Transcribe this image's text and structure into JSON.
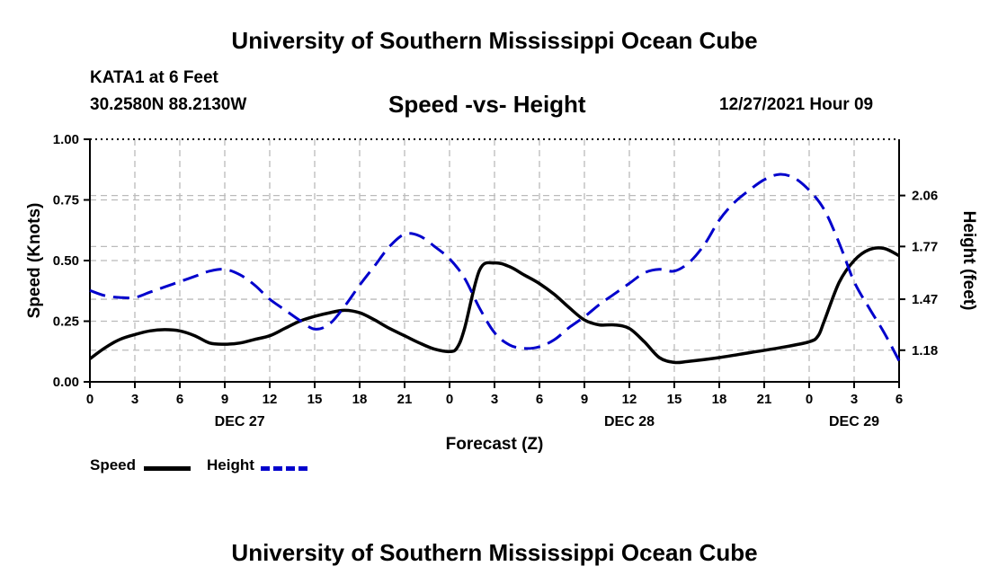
{
  "header": {
    "title": "University of Southern Mississippi Ocean Cube",
    "station": "KATA1 at 6 Feet",
    "coordinates": "30.2580N  88.2130W",
    "subtitle": "Speed -vs- Height",
    "datetime": "12/27/2021 Hour 09"
  },
  "footer": {
    "title": "University of Southern Mississippi Ocean Cube"
  },
  "legend": {
    "speed_label": "Speed",
    "height_label": "Height"
  },
  "colors": {
    "speed": "#000000",
    "height": "#0000cc",
    "grid": "#bbbbbb",
    "axis": "#000000"
  },
  "chart_data": {
    "type": "line",
    "title": "Speed -vs- Height",
    "xlabel": "Forecast (Z)",
    "ylabel_left": "Speed (Knots)",
    "ylabel_right": "Height (feet)",
    "x_range_hours": [
      0,
      54
    ],
    "x_ticks": [
      {
        "hour": 0,
        "label": "0"
      },
      {
        "hour": 3,
        "label": "3"
      },
      {
        "hour": 6,
        "label": "6"
      },
      {
        "hour": 9,
        "label": "9"
      },
      {
        "hour": 12,
        "label": "12"
      },
      {
        "hour": 15,
        "label": "15"
      },
      {
        "hour": 18,
        "label": "18"
      },
      {
        "hour": 21,
        "label": "21"
      },
      {
        "hour": 24,
        "label": "0"
      },
      {
        "hour": 27,
        "label": "3"
      },
      {
        "hour": 30,
        "label": "6"
      },
      {
        "hour": 33,
        "label": "9"
      },
      {
        "hour": 36,
        "label": "12"
      },
      {
        "hour": 39,
        "label": "15"
      },
      {
        "hour": 42,
        "label": "18"
      },
      {
        "hour": 45,
        "label": "21"
      },
      {
        "hour": 48,
        "label": "0"
      },
      {
        "hour": 51,
        "label": "3"
      },
      {
        "hour": 54,
        "label": "6"
      }
    ],
    "date_labels": [
      {
        "hour": 10,
        "label": "DEC 27"
      },
      {
        "hour": 36,
        "label": "DEC 28"
      },
      {
        "hour": 51,
        "label": "DEC 29"
      }
    ],
    "y_left": {
      "min": 0,
      "max": 1.0,
      "ticks": [
        "0.00",
        "0.25",
        "0.50",
        "0.75",
        "1.00"
      ]
    },
    "y_right": {
      "min": 1.0,
      "max": 2.38,
      "ticks": [
        "1.18",
        "1.47",
        "1.77",
        "2.06"
      ]
    },
    "series": [
      {
        "name": "Speed",
        "axis": "left",
        "style": "solid",
        "hours": [
          0,
          1,
          2,
          3,
          4,
          5,
          6,
          7,
          8,
          9,
          10,
          11,
          12,
          13,
          14,
          15,
          16,
          17,
          18,
          19,
          20,
          21,
          22,
          23,
          24,
          24.5,
          25,
          26,
          27,
          28,
          29,
          30,
          31,
          32,
          33,
          34,
          35,
          36,
          37,
          38,
          39,
          40,
          42,
          44,
          46,
          48,
          48.6,
          49,
          50,
          51,
          52,
          53,
          54
        ],
        "values": [
          0.095,
          0.14,
          0.175,
          0.195,
          0.21,
          0.215,
          0.21,
          0.19,
          0.16,
          0.155,
          0.16,
          0.175,
          0.19,
          0.22,
          0.25,
          0.27,
          0.285,
          0.295,
          0.285,
          0.255,
          0.22,
          0.19,
          0.16,
          0.135,
          0.125,
          0.14,
          0.22,
          0.46,
          0.49,
          0.475,
          0.44,
          0.405,
          0.36,
          0.305,
          0.255,
          0.235,
          0.235,
          0.22,
          0.165,
          0.1,
          0.08,
          0.085,
          0.1,
          0.12,
          0.14,
          0.165,
          0.19,
          0.25,
          0.41,
          0.5,
          0.545,
          0.55,
          0.52
        ]
      },
      {
        "name": "Height",
        "axis": "right",
        "style": "dashed",
        "hours": [
          0,
          1,
          2,
          3,
          4,
          5,
          6,
          7,
          8,
          9,
          10,
          11,
          12,
          13,
          14,
          15,
          16,
          17,
          18,
          19,
          20,
          21,
          22,
          23,
          24,
          25,
          26,
          27,
          28,
          29,
          30,
          31,
          32,
          33,
          34,
          35,
          36,
          37,
          38,
          39,
          40,
          41,
          42,
          43,
          44,
          45,
          46,
          47,
          48,
          49,
          50,
          51,
          52,
          53,
          54
        ],
        "values": [
          1.52,
          1.49,
          1.48,
          1.48,
          1.51,
          1.54,
          1.57,
          1.6,
          1.63,
          1.64,
          1.61,
          1.55,
          1.47,
          1.41,
          1.35,
          1.3,
          1.33,
          1.43,
          1.55,
          1.66,
          1.77,
          1.84,
          1.83,
          1.77,
          1.7,
          1.59,
          1.42,
          1.28,
          1.21,
          1.19,
          1.2,
          1.24,
          1.31,
          1.37,
          1.44,
          1.5,
          1.56,
          1.62,
          1.64,
          1.63,
          1.68,
          1.78,
          1.92,
          2.02,
          2.09,
          2.15,
          2.18,
          2.16,
          2.09,
          1.98,
          1.79,
          1.57,
          1.42,
          1.28,
          1.12
        ]
      }
    ]
  }
}
